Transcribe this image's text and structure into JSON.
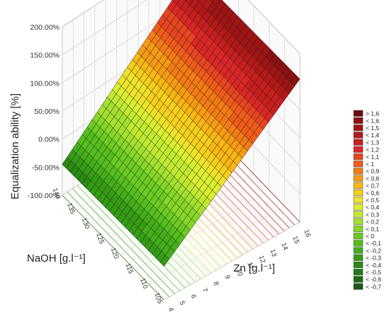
{
  "chart_data": {
    "type": "surface3d",
    "title": "",
    "xlabel": "Zn [g.l⁻¹]",
    "ylabel": "NaOH [g.l⁻¹]",
    "zlabel": "Equalization ability [%]",
    "x_ticks": [
      "4",
      "5",
      "6",
      "7",
      "8",
      "9",
      "10",
      "11",
      "12",
      "13",
      "14",
      "15",
      "16"
    ],
    "y_ticks": [
      "105",
      "110",
      "115",
      "120",
      "125",
      "130",
      "135",
      "140"
    ],
    "z_ticks": [
      "-100.00%",
      "-50.00%",
      "0.00%",
      "50.00%",
      "100.00%",
      "150.00%",
      "200.00%"
    ],
    "xlim": [
      4,
      16
    ],
    "ylim": [
      105,
      140
    ],
    "zlim": [
      -100,
      200
    ],
    "surface": {
      "description_points": [
        {
          "x": 4,
          "y": 140,
          "z": -45
        },
        {
          "x": 4,
          "y": 105,
          "z": -40
        },
        {
          "x": 16,
          "y": 140,
          "z": 150
        },
        {
          "x": 16,
          "y": 105,
          "z": 155
        }
      ]
    },
    "legend": {
      "placement": "right",
      "entries": [
        "> 1,6",
        "< 1,6",
        "< 1,5",
        "< 1,4",
        "< 1,3",
        "< 1,2",
        "< 1,1",
        "< 1",
        "< 0,9",
        "< 0,8",
        "< 0,7",
        "< 0,6",
        "< 0,5",
        "< 0,4",
        "< 0,3",
        "< 0,2",
        "< 0,1",
        "< 0",
        "< -0,1",
        "< -0,2",
        "< -0,3",
        "< -0,4",
        "< -0,5",
        "< -0,6",
        "< -0,7"
      ],
      "colors": [
        "#6b0d0d",
        "#8c1010",
        "#a01414",
        "#b41818",
        "#c81e1e",
        "#dc2626",
        "#e84420",
        "#f05c18",
        "#f47a14",
        "#f89a14",
        "#f9b614",
        "#f6cf1c",
        "#eee22a",
        "#d8ee30",
        "#c0ea30",
        "#a4e030",
        "#86d628",
        "#6acb22",
        "#54be1c",
        "#42ae18",
        "#349c14",
        "#2a8a12",
        "#227a12",
        "#1c6a14",
        "#165a16"
      ]
    },
    "grid": true
  }
}
